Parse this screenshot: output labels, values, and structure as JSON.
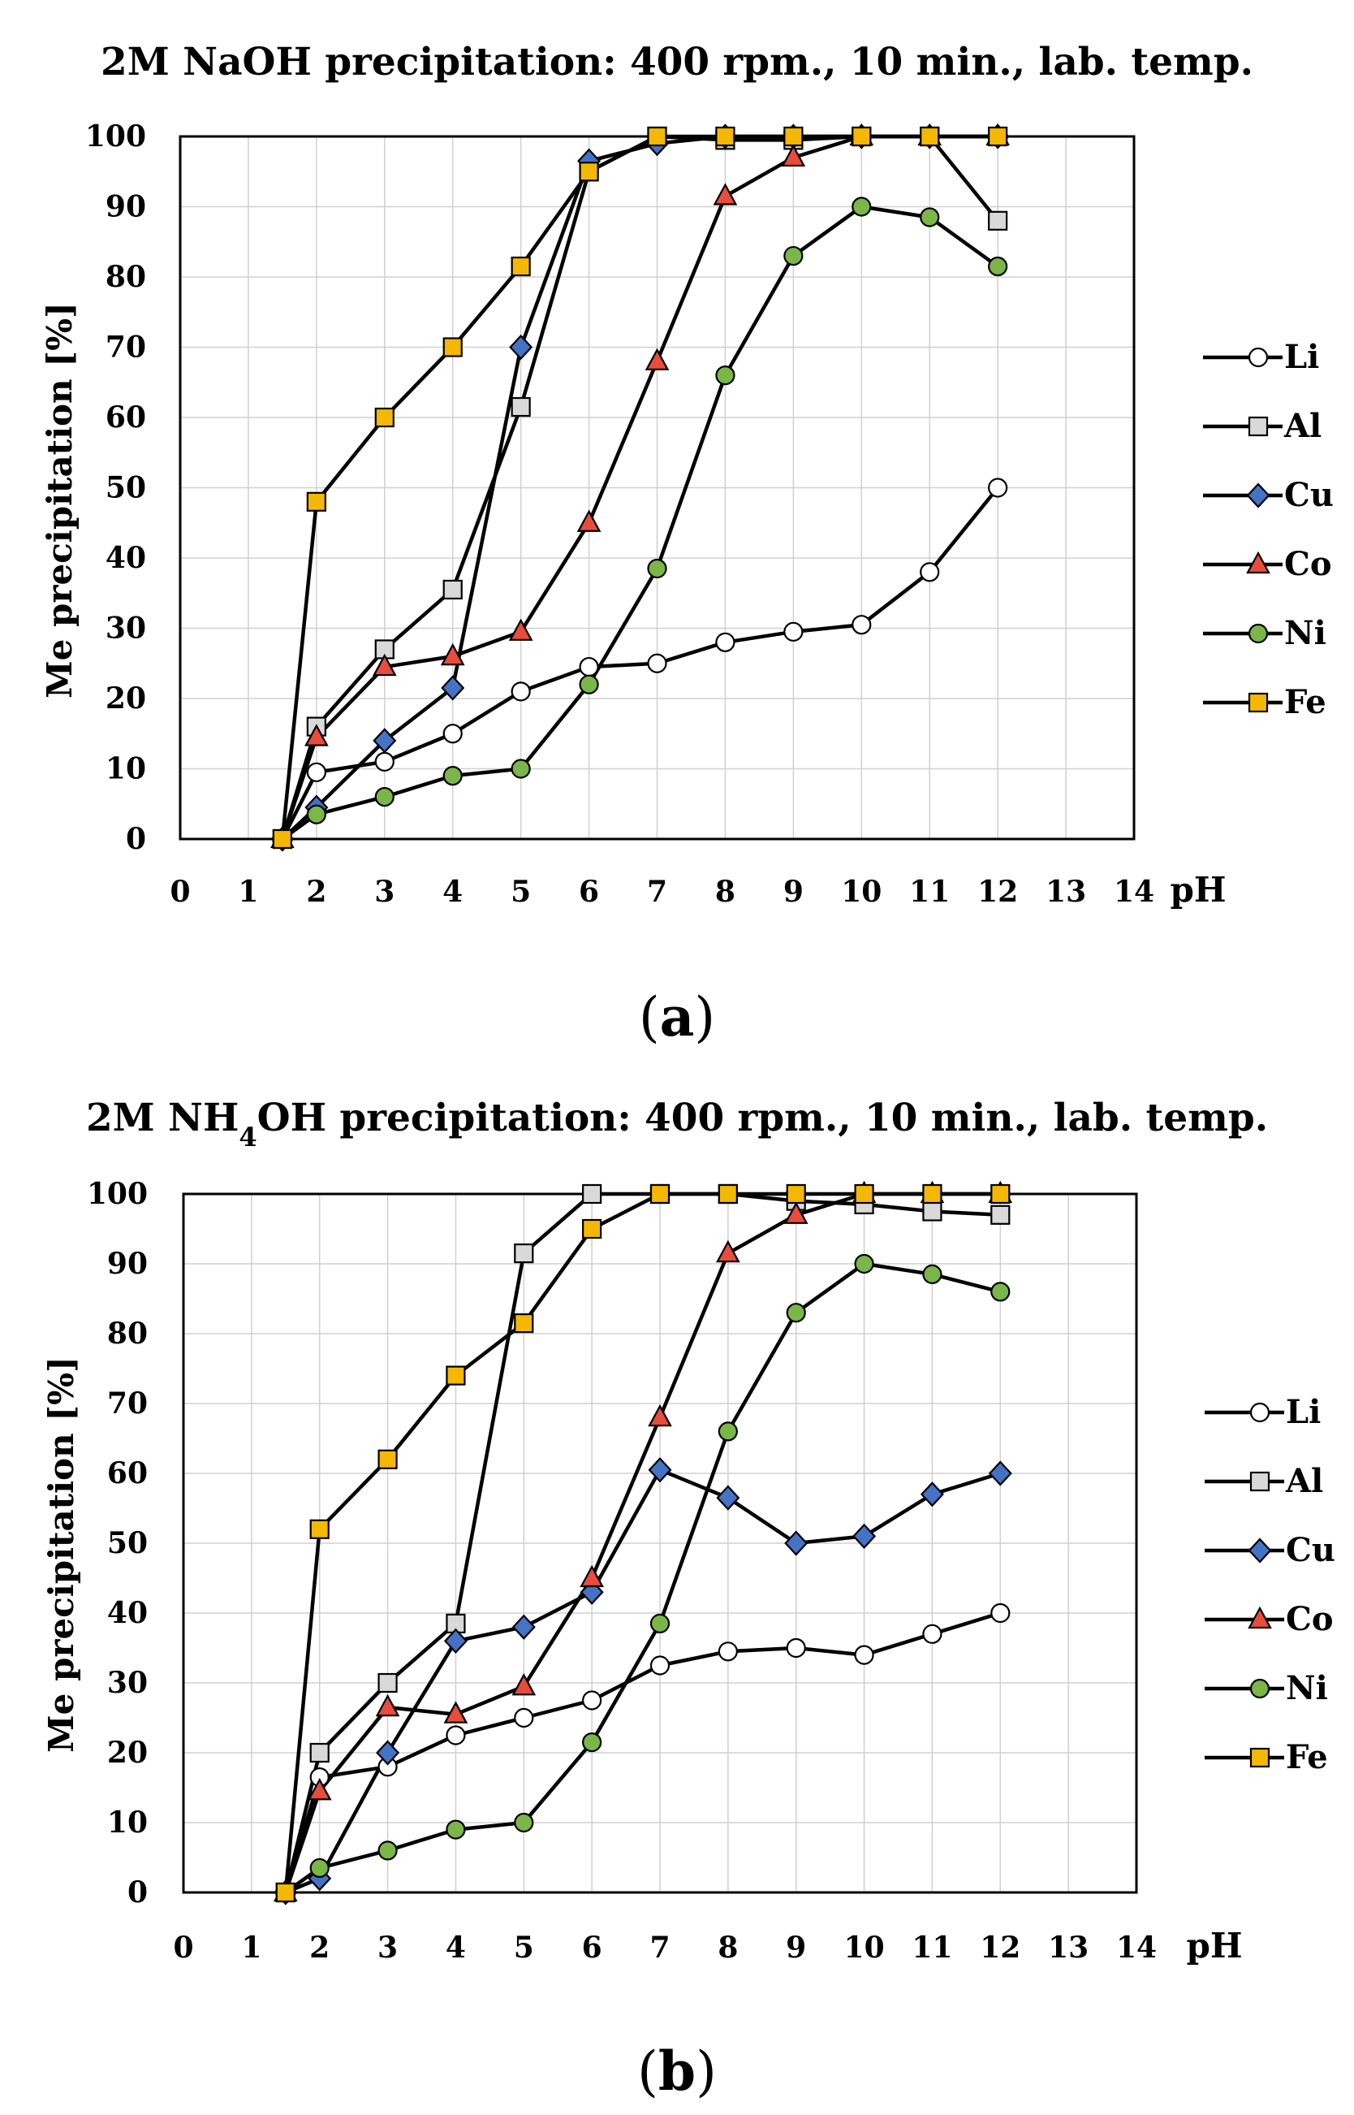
{
  "panel_a_label": "a",
  "panel_b_label": "b",
  "chart_data": [
    {
      "type": "line",
      "title": "2M NaOH precipitation: 400 rpm., 10 min., lab. temp.",
      "xlabel": "pH",
      "ylabel": "Me precipitation [%]",
      "xlim": [
        0,
        14
      ],
      "ylim": [
        0,
        100
      ],
      "xticks": [
        0,
        1,
        2,
        3,
        4,
        5,
        6,
        7,
        8,
        9,
        10,
        11,
        12,
        13,
        14
      ],
      "yticks": [
        0,
        10,
        20,
        30,
        40,
        50,
        60,
        70,
        80,
        90,
        100
      ],
      "grid": true,
      "legend_position": "right",
      "series": [
        {
          "name": "Li",
          "marker": "circle",
          "color": "#ffffff",
          "x": [
            1.5,
            2,
            3,
            4,
            5,
            6,
            7,
            8,
            9,
            10,
            11,
            12
          ],
          "y": [
            0,
            9.5,
            11,
            15,
            21,
            24.5,
            25,
            28,
            29.5,
            30.5,
            38,
            50
          ]
        },
        {
          "name": "Al",
          "marker": "square",
          "color": "#d9d9d9",
          "x": [
            1.5,
            2,
            3,
            4,
            5,
            6,
            7,
            8,
            9,
            10,
            11,
            12
          ],
          "y": [
            0,
            16,
            27,
            35.5,
            61.5,
            95,
            100,
            99.5,
            99.5,
            100,
            100,
            88
          ]
        },
        {
          "name": "Cu",
          "marker": "diamond",
          "color": "#4472c4",
          "x": [
            1.5,
            2,
            3,
            4,
            5,
            6,
            7,
            8,
            9,
            10,
            11,
            12
          ],
          "y": [
            0,
            4.5,
            14,
            21.5,
            70,
            96.5,
            99,
            100,
            100,
            100,
            100,
            100
          ]
        },
        {
          "name": "Co",
          "marker": "triangle",
          "color": "#e74c3c",
          "x": [
            1.5,
            2,
            3,
            4,
            5,
            6,
            7,
            8,
            9,
            10,
            11,
            12
          ],
          "y": [
            0,
            14.5,
            24.5,
            26,
            29.5,
            45,
            68,
            91.5,
            97,
            100,
            100,
            100
          ]
        },
        {
          "name": "Ni",
          "marker": "circle",
          "color": "#7ab648",
          "x": [
            1.5,
            2,
            3,
            4,
            5,
            6,
            7,
            8,
            9,
            10,
            11,
            12
          ],
          "y": [
            0,
            3.5,
            6,
            9,
            10,
            22,
            38.5,
            66,
            83,
            90,
            88.5,
            81.5
          ]
        },
        {
          "name": "Fe",
          "marker": "square",
          "color": "#f5b800",
          "x": [
            1.5,
            2,
            3,
            4,
            5,
            6,
            7,
            8,
            9,
            10,
            11,
            12
          ],
          "y": [
            0,
            48,
            60,
            70,
            81.5,
            95,
            100,
            100,
            100,
            100,
            100,
            100
          ]
        }
      ]
    },
    {
      "type": "line",
      "title_parts": [
        "2M NH",
        "4",
        "OH precipitation: 400 rpm., 10 min., lab. temp."
      ],
      "xlabel": "pH",
      "ylabel": "Me precipitation [%]",
      "xlim": [
        0,
        14
      ],
      "ylim": [
        0,
        100
      ],
      "xticks": [
        0,
        1,
        2,
        3,
        4,
        5,
        6,
        7,
        8,
        9,
        10,
        11,
        12,
        13,
        14
      ],
      "yticks": [
        0,
        10,
        20,
        30,
        40,
        50,
        60,
        70,
        80,
        90,
        100
      ],
      "grid": true,
      "legend_position": "right",
      "series": [
        {
          "name": "Li",
          "marker": "circle",
          "color": "#ffffff",
          "x": [
            1.5,
            2,
            3,
            4,
            5,
            6,
            7,
            8,
            9,
            10,
            11,
            12
          ],
          "y": [
            0,
            16.5,
            18,
            22.5,
            25,
            27.5,
            32.5,
            34.5,
            35,
            34,
            37,
            40
          ]
        },
        {
          "name": "Al",
          "marker": "square",
          "color": "#d9d9d9",
          "x": [
            1.5,
            2,
            3,
            4,
            5,
            6,
            7,
            8,
            9,
            10,
            11,
            12
          ],
          "y": [
            0,
            20,
            30,
            38.5,
            91.5,
            100,
            100,
            100,
            99,
            98.5,
            97.5,
            97
          ]
        },
        {
          "name": "Cu",
          "marker": "diamond",
          "color": "#4472c4",
          "x": [
            1.5,
            2,
            3,
            4,
            5,
            6,
            7,
            8,
            9,
            10,
            11,
            12
          ],
          "y": [
            0,
            2,
            20,
            36,
            38,
            43,
            60.5,
            56.5,
            50,
            51,
            57,
            60
          ]
        },
        {
          "name": "Co",
          "marker": "triangle",
          "color": "#e74c3c",
          "x": [
            1.5,
            2,
            3,
            4,
            5,
            6,
            7,
            8,
            9,
            10,
            11,
            12
          ],
          "y": [
            0,
            14.5,
            26.5,
            25.5,
            29.5,
            45,
            68,
            91.5,
            97,
            100,
            100,
            100
          ]
        },
        {
          "name": "Ni",
          "marker": "circle",
          "color": "#7ab648",
          "x": [
            1.5,
            2,
            3,
            4,
            5,
            6,
            7,
            8,
            9,
            10,
            11,
            12
          ],
          "y": [
            0,
            3.5,
            6,
            9,
            10,
            21.5,
            38.5,
            66,
            83,
            90,
            88.5,
            86
          ]
        },
        {
          "name": "Fe",
          "marker": "square",
          "color": "#f5b800",
          "x": [
            1.5,
            2,
            3,
            4,
            5,
            6,
            7,
            8,
            9,
            10,
            11,
            12
          ],
          "y": [
            0,
            52,
            62,
            74,
            81.5,
            95,
            100,
            100,
            100,
            100,
            100,
            100
          ]
        }
      ]
    }
  ]
}
